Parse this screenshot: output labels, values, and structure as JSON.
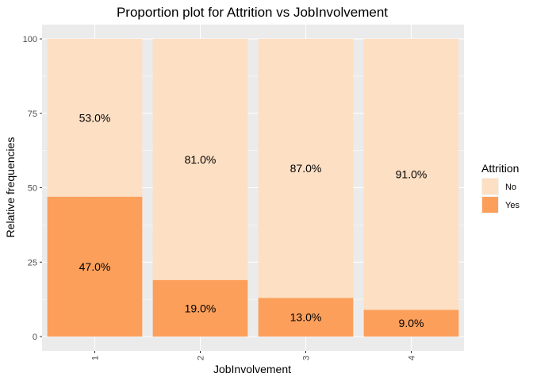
{
  "chart_data": {
    "type": "bar",
    "stacked": true,
    "title": "Proportion plot for Attrition vs JobInvolvement",
    "xlabel": "JobInvolvement",
    "ylabel": "Relative frequencies",
    "categories": [
      "1",
      "2",
      "3",
      "4"
    ],
    "ylim": [
      0,
      100
    ],
    "yticks": [
      0,
      25,
      50,
      75,
      100
    ],
    "grid": true,
    "legend": {
      "title": "Attrition",
      "position": "right"
    },
    "series": [
      {
        "name": "Yes",
        "color": "#fc9f5b",
        "values": [
          47.0,
          19.0,
          13.0,
          9.0
        ],
        "labels": [
          "47.0%",
          "19.0%",
          "13.0%",
          "9.0%"
        ]
      },
      {
        "name": "No",
        "color": "#fddfc3",
        "values": [
          53.0,
          81.0,
          87.0,
          91.0
        ],
        "labels": [
          "53.0%",
          "81.0%",
          "87.0%",
          "91.0%"
        ]
      }
    ],
    "legend_order": [
      "No",
      "Yes"
    ],
    "panel_color": "#ebebeb",
    "grid_color": "#ffffff"
  }
}
